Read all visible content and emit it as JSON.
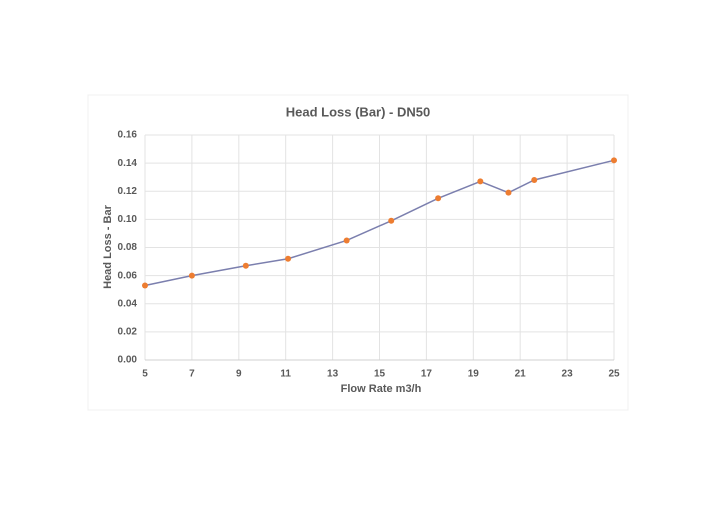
{
  "chart_data": {
    "type": "line",
    "title": "Head Loss  (Bar) - DN50",
    "x_label": "Flow Rate  m3/h",
    "y_label": "Head Loss - Bar",
    "x": [
      5,
      7,
      9.3,
      11.1,
      13.6,
      15.5,
      17.5,
      19.3,
      20.5,
      21.6,
      25
    ],
    "series": [
      {
        "color": "#7b7fae",
        "marker_color": "#ed7d31",
        "values": [
          0.053,
          0.06,
          0.067,
          0.072,
          0.085,
          0.099,
          0.115,
          0.127,
          0.119,
          0.128,
          0.142
        ]
      }
    ],
    "xlim": [
      5,
      25
    ],
    "xticks": [
      5,
      7,
      9,
      11,
      13,
      15,
      17,
      19,
      21,
      23,
      25
    ],
    "ylim": [
      0,
      0.16
    ],
    "yticks": [
      {
        "value": 0,
        "label": "0.00"
      },
      {
        "value": 0.02,
        "label": "0.02"
      },
      {
        "value": 0.04,
        "label": "0.04"
      },
      {
        "value": 0.06,
        "label": "0.06"
      },
      {
        "value": 0.08,
        "label": "0.08"
      },
      {
        "value": 0.1,
        "label": "0.10"
      },
      {
        "value": 0.12,
        "label": "0.12"
      },
      {
        "value": 0.14,
        "label": "0.14"
      },
      {
        "value": 0.16,
        "label": "0.16"
      }
    ],
    "grid": true
  }
}
